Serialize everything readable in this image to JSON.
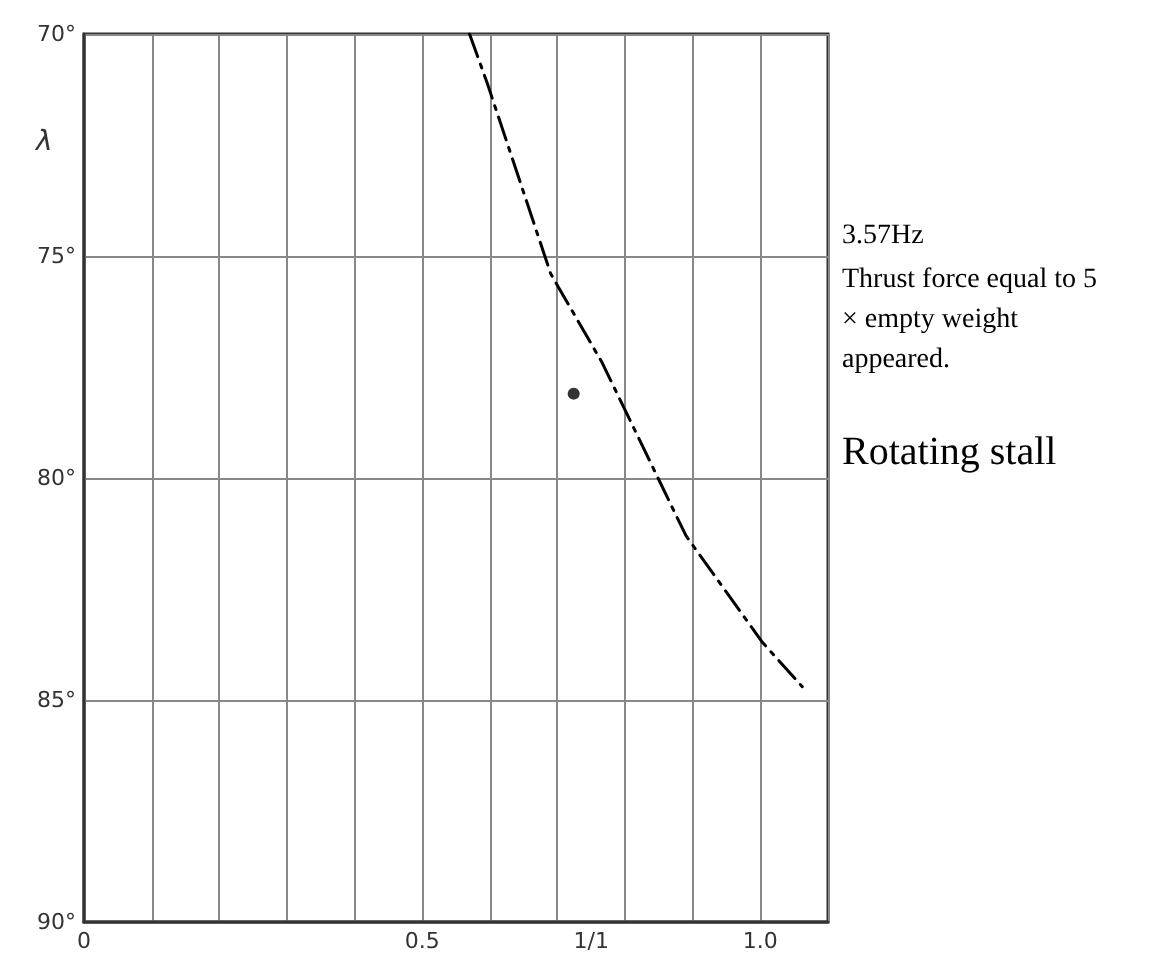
{
  "chart_data": {
    "type": "line",
    "ylabel": "λ",
    "annotations": [
      "3.57Hz",
      "Thrust force equal to 5 × empty weight appeared.",
      "Rotating stall"
    ],
    "series": [
      {
        "color": "#000000",
        "marker": "none",
        "line_style": "dashed",
        "x": [
          0.57,
          0.596,
          0.69,
          0.766,
          0.89,
          1.003,
          1.062
        ],
        "values": [
          70,
          71.1,
          75.4,
          77.4,
          81.3,
          83.7,
          84.7
        ]
      },
      {
        "type": "scatter",
        "color": "#000000",
        "marker": "circle",
        "x": [
          0.724
        ],
        "values": [
          78.1
        ]
      }
    ],
    "xlim": [
      0,
      1.1
    ],
    "xticks": [
      0,
      {
        "value": 0.1,
        "label": null
      },
      {
        "value": 0.2,
        "label": null
      },
      {
        "value": 0.3,
        "label": null
      },
      {
        "value": 0.4,
        "label": null
      },
      0.5,
      {
        "value": 0.6,
        "label": null
      },
      {
        "value": 0.7,
        "label": null
      },
      {
        "value": 0.75,
        "label": "1/1"
      },
      {
        "value": 0.8,
        "label": null
      },
      {
        "value": 0.9,
        "label": null
      },
      {
        "value": 1.0,
        "label": "1.0"
      },
      {
        "value": 1.1,
        "label": null
      }
    ],
    "ylim": [
      90,
      70
    ],
    "yticks": [
      {
        "value": 70,
        "label": "70°"
      },
      {
        "value": 75,
        "label": "75°"
      },
      {
        "value": 80,
        "label": "80°"
      },
      {
        "value": 85,
        "label": "85°"
      },
      {
        "value": 90,
        "label": "90°"
      }
    ],
    "grid": true
  }
}
